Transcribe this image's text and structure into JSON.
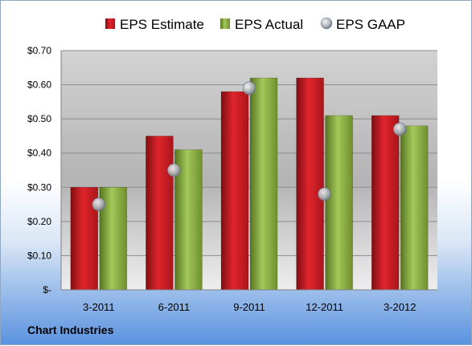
{
  "chart_data": {
    "type": "bar",
    "categories": [
      "3-2011",
      "6-2011",
      "9-2011",
      "12-2011",
      "3-2012"
    ],
    "series": [
      {
        "name": "EPS Estimate",
        "kind": "bar",
        "color": "#d21c24",
        "values": [
          0.3,
          0.45,
          0.58,
          0.62,
          0.51
        ]
      },
      {
        "name": "EPS Actual",
        "kind": "bar",
        "color": "#8cb43c",
        "values": [
          0.3,
          0.41,
          0.62,
          0.51,
          0.48
        ]
      },
      {
        "name": "EPS GAAP",
        "kind": "marker",
        "color": "#aeb4bc",
        "values": [
          0.25,
          0.35,
          0.59,
          0.28,
          0.47
        ]
      }
    ],
    "yticks": [
      "$-",
      "$0.10",
      "$0.20",
      "$0.30",
      "$0.40",
      "$0.50",
      "$0.60",
      "$0.70"
    ],
    "ylim": [
      0,
      0.7
    ],
    "grid": true,
    "legend": "top"
  },
  "footer": {
    "company": "Chart Industries"
  }
}
